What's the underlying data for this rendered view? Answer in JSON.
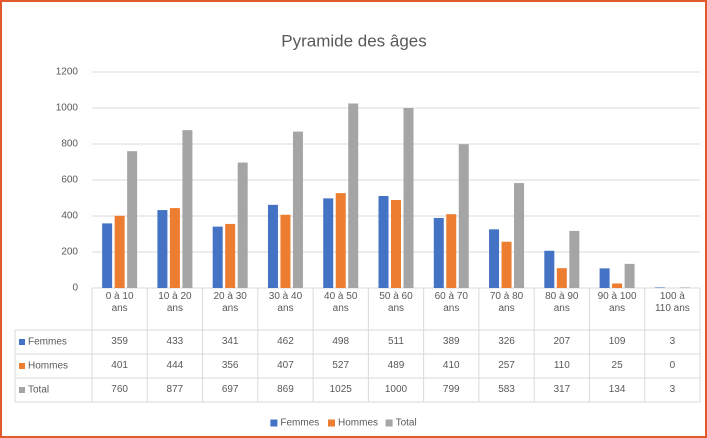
{
  "chart_data": {
    "type": "bar",
    "title": "Pyramide des âges",
    "categories": [
      "0 à 10 ans",
      "10 à 20 ans",
      "20 à 30 ans",
      "30 à 40 ans",
      "40 à 50 ans",
      "50 à 60 ans",
      "60 à 70 ans",
      "70 à 80 ans",
      "80 à 90 ans",
      "90 à 100 ans",
      "100 à 110 ans"
    ],
    "series": [
      {
        "name": "Femmes",
        "color": "#4472c4",
        "values": [
          359,
          433,
          341,
          462,
          498,
          511,
          389,
          326,
          207,
          109,
          3
        ]
      },
      {
        "name": "Hommes",
        "color": "#ed7d31",
        "values": [
          401,
          444,
          356,
          407,
          527,
          489,
          410,
          257,
          110,
          25,
          0
        ]
      },
      {
        "name": "Total",
        "color": "#a5a5a5",
        "values": [
          760,
          877,
          697,
          869,
          1025,
          1000,
          799,
          583,
          317,
          134,
          3
        ]
      }
    ],
    "ylim": [
      0,
      1200
    ],
    "yticks": [
      0,
      200,
      400,
      600,
      800,
      1000,
      1200
    ],
    "grid": true,
    "legend": "bottom"
  }
}
